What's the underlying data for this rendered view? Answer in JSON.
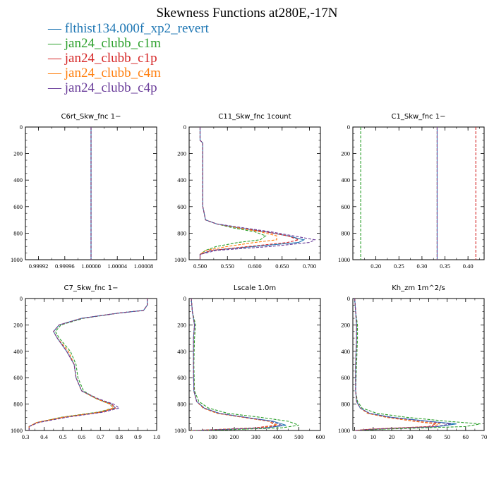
{
  "title": "Skewness Functions at280E,-17N",
  "legend": [
    {
      "label": "— flthist134.000f_xp2_revert",
      "color": "#1f77b4"
    },
    {
      "label": "— jan24_clubb_c1m",
      "color": "#2ca02c"
    },
    {
      "label": "— jan24_clubb_c1p",
      "color": "#d62728"
    },
    {
      "label": "— jan24_clubb_c4m",
      "color": "#ff7f0e"
    },
    {
      "label": "— jan24_clubb_c4p",
      "color": "#6a3d9a"
    }
  ],
  "chart_data": [
    {
      "type": "line",
      "title": "C6rt_Skw_fnc   1−",
      "xlim": [
        0.9999,
        1.0001
      ],
      "xticks": [
        "0.99992",
        "0.99996",
        "1.00000",
        "1.00004",
        "1.00008"
      ],
      "xtick_values": [
        0.99992,
        0.99996,
        1.0,
        1.00004,
        1.00008
      ],
      "ylim": [
        0,
        1000
      ],
      "yticks": [
        "0",
        "200",
        "400",
        "600",
        "800",
        "1000"
      ],
      "y_inverted": true,
      "series": [
        {
          "color": "#1f77b4",
          "y": [
            0,
            1000
          ],
          "x": [
            1.0,
            1.0
          ]
        },
        {
          "color": "#2ca02c",
          "y": [
            0,
            1000
          ],
          "x": [
            1.0,
            1.0
          ]
        },
        {
          "color": "#d62728",
          "y": [
            0,
            1000
          ],
          "x": [
            1.0,
            1.0
          ]
        },
        {
          "color": "#ff7f0e",
          "y": [
            0,
            1000
          ],
          "x": [
            1.0,
            1.0
          ]
        },
        {
          "color": "#6a3d9a",
          "y": [
            0,
            1000
          ],
          "x": [
            1.0,
            1.0
          ]
        }
      ]
    },
    {
      "type": "line",
      "title": "C11_Skw_fnc   1count",
      "xlim": [
        0.48,
        0.72
      ],
      "xticks": [
        "0.500",
        "0.550",
        "0.600",
        "0.650",
        "0.700"
      ],
      "xtick_values": [
        0.5,
        0.55,
        0.6,
        0.65,
        0.7
      ],
      "ylim": [
        0,
        1000
      ],
      "yticks": [
        "0",
        "200",
        "400",
        "600",
        "800",
        "1000"
      ],
      "y_inverted": true,
      "series": [
        {
          "color": "#1f77b4",
          "y": [
            0,
            100,
            120,
            140,
            300,
            600,
            700,
            730,
            760,
            790,
            820,
            850,
            870,
            900,
            930,
            960,
            1000
          ],
          "x": [
            0.5,
            0.5,
            0.505,
            0.505,
            0.505,
            0.505,
            0.51,
            0.53,
            0.57,
            0.62,
            0.66,
            0.69,
            0.68,
            0.6,
            0.52,
            0.5,
            0.5
          ]
        },
        {
          "color": "#2ca02c",
          "y": [
            0,
            100,
            120,
            140,
            300,
            600,
            700,
            730,
            760,
            790,
            820,
            850,
            870,
            900,
            930,
            960,
            1000
          ],
          "x": [
            0.5,
            0.5,
            0.505,
            0.505,
            0.505,
            0.505,
            0.51,
            0.53,
            0.56,
            0.6,
            0.62,
            0.61,
            0.57,
            0.53,
            0.51,
            0.5,
            0.5
          ]
        },
        {
          "color": "#d62728",
          "y": [
            0,
            100,
            120,
            140,
            300,
            600,
            700,
            730,
            760,
            790,
            820,
            850,
            870,
            900,
            930,
            960,
            1000
          ],
          "x": [
            0.5,
            0.5,
            0.505,
            0.505,
            0.505,
            0.505,
            0.51,
            0.53,
            0.57,
            0.62,
            0.66,
            0.68,
            0.66,
            0.59,
            0.52,
            0.5,
            0.5
          ]
        },
        {
          "color": "#ff7f0e",
          "y": [
            0,
            100,
            120,
            140,
            300,
            600,
            700,
            730,
            760,
            790,
            820,
            850,
            870,
            900,
            930,
            960,
            1000
          ],
          "x": [
            0.5,
            0.5,
            0.505,
            0.505,
            0.505,
            0.505,
            0.51,
            0.53,
            0.57,
            0.61,
            0.64,
            0.64,
            0.6,
            0.55,
            0.51,
            0.5,
            0.5
          ]
        },
        {
          "color": "#6a3d9a",
          "y": [
            0,
            100,
            120,
            140,
            300,
            600,
            700,
            730,
            760,
            790,
            820,
            850,
            870,
            900,
            930,
            960,
            1000
          ],
          "x": [
            0.5,
            0.5,
            0.505,
            0.505,
            0.505,
            0.505,
            0.51,
            0.53,
            0.58,
            0.63,
            0.67,
            0.71,
            0.7,
            0.63,
            0.53,
            0.5,
            0.5
          ]
        }
      ]
    },
    {
      "type": "line",
      "title": "C1_Skw_fnc   1−",
      "xlim": [
        0.15,
        0.435
      ],
      "xticks": [
        "0.20",
        "0.25",
        "0.30",
        "0.35",
        "0.40"
      ],
      "xtick_values": [
        0.2,
        0.25,
        0.3,
        0.35,
        0.4
      ],
      "ylim": [
        0,
        1000
      ],
      "yticks": [
        "0",
        "200",
        "400",
        "600",
        "800",
        "1000"
      ],
      "y_inverted": true,
      "series": [
        {
          "color": "#1f77b4",
          "y": [
            0,
            1000
          ],
          "x": [
            0.333,
            0.333
          ]
        },
        {
          "color": "#2ca02c",
          "y": [
            0,
            1000
          ],
          "x": [
            0.167,
            0.167
          ]
        },
        {
          "color": "#d62728",
          "y": [
            0,
            1000
          ],
          "x": [
            0.417,
            0.417
          ]
        },
        {
          "color": "#ff7f0e",
          "y": [
            0,
            1000
          ],
          "x": [
            0.333,
            0.333
          ]
        },
        {
          "color": "#6a3d9a",
          "y": [
            0,
            1000
          ],
          "x": [
            0.333,
            0.333
          ]
        }
      ]
    },
    {
      "type": "line",
      "title": "C7_Skw_fnc   1−",
      "xlim": [
        0.3,
        1.0
      ],
      "xticks": [
        "0.3",
        "0.4",
        "0.5",
        "0.6",
        "0.7",
        "0.8",
        "0.9",
        "1.0"
      ],
      "xtick_values": [
        0.3,
        0.4,
        0.5,
        0.6,
        0.7,
        0.8,
        0.9,
        1.0
      ],
      "ylim": [
        0,
        1000
      ],
      "yticks": [
        "0",
        "200",
        "400",
        "600",
        "800",
        "1000"
      ],
      "y_inverted": true,
      "series": [
        {
          "color": "#1f77b4",
          "y": [
            0,
            50,
            90,
            110,
            150,
            200,
            250,
            300,
            400,
            500,
            600,
            700,
            760,
            800,
            830,
            860,
            900,
            940,
            970,
            1000
          ],
          "x": [
            0.95,
            0.95,
            0.93,
            0.8,
            0.6,
            0.48,
            0.45,
            0.47,
            0.52,
            0.56,
            0.57,
            0.6,
            0.68,
            0.76,
            0.78,
            0.7,
            0.5,
            0.36,
            0.32,
            0.32
          ]
        },
        {
          "color": "#2ca02c",
          "y": [
            0,
            50,
            90,
            110,
            150,
            200,
            250,
            300,
            400,
            500,
            600,
            700,
            760,
            800,
            830,
            860,
            900,
            940,
            970,
            1000
          ],
          "x": [
            0.95,
            0.95,
            0.93,
            0.8,
            0.61,
            0.49,
            0.46,
            0.48,
            0.54,
            0.57,
            0.58,
            0.61,
            0.68,
            0.75,
            0.77,
            0.69,
            0.49,
            0.36,
            0.32,
            0.32
          ]
        },
        {
          "color": "#d62728",
          "y": [
            0,
            50,
            90,
            110,
            150,
            200,
            250,
            300,
            400,
            500,
            600,
            700,
            760,
            800,
            830,
            860,
            900,
            940,
            970,
            1000
          ],
          "x": [
            0.95,
            0.95,
            0.93,
            0.8,
            0.6,
            0.48,
            0.45,
            0.47,
            0.52,
            0.56,
            0.57,
            0.6,
            0.68,
            0.76,
            0.78,
            0.71,
            0.5,
            0.36,
            0.32,
            0.32
          ]
        },
        {
          "color": "#ff7f0e",
          "y": [
            0,
            50,
            90,
            110,
            150,
            200,
            250,
            300,
            400,
            500,
            600,
            700,
            760,
            800,
            830,
            860,
            900,
            940,
            970,
            1000
          ],
          "x": [
            0.95,
            0.95,
            0.93,
            0.8,
            0.6,
            0.48,
            0.45,
            0.47,
            0.53,
            0.56,
            0.57,
            0.6,
            0.68,
            0.75,
            0.77,
            0.7,
            0.5,
            0.36,
            0.32,
            0.32
          ]
        },
        {
          "color": "#6a3d9a",
          "y": [
            0,
            50,
            90,
            110,
            150,
            200,
            250,
            300,
            400,
            500,
            600,
            700,
            760,
            800,
            830,
            860,
            900,
            940,
            970,
            1000
          ],
          "x": [
            0.95,
            0.95,
            0.93,
            0.8,
            0.6,
            0.48,
            0.45,
            0.47,
            0.52,
            0.56,
            0.57,
            0.6,
            0.69,
            0.77,
            0.8,
            0.72,
            0.52,
            0.37,
            0.32,
            0.32
          ]
        }
      ]
    },
    {
      "type": "line",
      "title": "Lscale   1.0m",
      "xlim": [
        -10,
        600
      ],
      "xticks": [
        "0",
        "100",
        "200",
        "300",
        "400",
        "500",
        "600"
      ],
      "xtick_values": [
        0,
        100,
        200,
        300,
        400,
        500,
        600
      ],
      "ylim": [
        0,
        1000
      ],
      "yticks": [
        "0",
        "200",
        "400",
        "600",
        "800",
        "1000"
      ],
      "y_inverted": true,
      "series": [
        {
          "color": "#1f77b4",
          "y": [
            0,
            100,
            200,
            300,
            500,
            700,
            780,
            830,
            870,
            900,
            930,
            960,
            980,
            995,
            1000
          ],
          "x": [
            0,
            5,
            15,
            10,
            10,
            12,
            25,
            60,
            130,
            250,
            380,
            440,
            350,
            100,
            0
          ]
        },
        {
          "color": "#2ca02c",
          "y": [
            0,
            100,
            200,
            300,
            500,
            700,
            780,
            830,
            870,
            900,
            930,
            960,
            980,
            995,
            1000
          ],
          "x": [
            0,
            5,
            20,
            15,
            12,
            15,
            35,
            80,
            170,
            320,
            450,
            500,
            420,
            150,
            0
          ]
        },
        {
          "color": "#d62728",
          "y": [
            0,
            100,
            200,
            300,
            500,
            700,
            780,
            830,
            870,
            900,
            930,
            960,
            980,
            995,
            1000
          ],
          "x": [
            0,
            5,
            15,
            10,
            10,
            12,
            25,
            55,
            120,
            240,
            360,
            390,
            300,
            80,
            0
          ]
        },
        {
          "color": "#ff7f0e",
          "y": [
            0,
            100,
            200,
            300,
            500,
            700,
            780,
            830,
            870,
            900,
            930,
            960,
            980,
            995,
            1000
          ],
          "x": [
            0,
            5,
            15,
            10,
            10,
            12,
            25,
            55,
            120,
            240,
            360,
            400,
            320,
            90,
            0
          ]
        },
        {
          "color": "#6a3d9a",
          "y": [
            0,
            100,
            200,
            300,
            500,
            700,
            780,
            830,
            870,
            900,
            930,
            960,
            980,
            995,
            1000
          ],
          "x": [
            0,
            5,
            15,
            10,
            10,
            12,
            25,
            60,
            130,
            250,
            370,
            420,
            340,
            100,
            0
          ]
        }
      ]
    },
    {
      "type": "line",
      "title": "Kh_zm   1m^2/s",
      "xlim": [
        -1,
        70
      ],
      "xticks": [
        "0",
        "10",
        "20",
        "30",
        "40",
        "50",
        "60",
        "70"
      ],
      "xtick_values": [
        0,
        10,
        20,
        30,
        40,
        50,
        60,
        70
      ],
      "ylim": [
        0,
        1000
      ],
      "yticks": [
        "0",
        "200",
        "400",
        "600",
        "800",
        "1000"
      ],
      "y_inverted": true,
      "series": [
        {
          "color": "#1f77b4",
          "y": [
            0,
            100,
            200,
            300,
            500,
            700,
            780,
            830,
            870,
            900,
            930,
            950,
            970,
            990,
            1000
          ],
          "x": [
            0,
            0.5,
            1,
            1,
            0.5,
            0.5,
            1,
            3,
            8,
            20,
            40,
            55,
            45,
            10,
            0
          ]
        },
        {
          "color": "#2ca02c",
          "y": [
            0,
            100,
            200,
            300,
            500,
            700,
            780,
            830,
            870,
            900,
            930,
            950,
            970,
            990,
            1000
          ],
          "x": [
            0,
            0.5,
            1.5,
            1.5,
            1,
            0.5,
            1.5,
            4,
            12,
            28,
            50,
            68,
            60,
            15,
            0
          ]
        },
        {
          "color": "#d62728",
          "y": [
            0,
            100,
            200,
            300,
            500,
            700,
            780,
            830,
            870,
            900,
            930,
            950,
            970,
            990,
            1000
          ],
          "x": [
            0,
            0.5,
            1,
            1,
            0.5,
            0.5,
            1,
            3,
            7,
            17,
            32,
            44,
            40,
            8,
            0
          ]
        },
        {
          "color": "#ff7f0e",
          "y": [
            0,
            100,
            200,
            300,
            500,
            700,
            780,
            830,
            870,
            900,
            930,
            950,
            970,
            990,
            1000
          ],
          "x": [
            0,
            0.5,
            1,
            1,
            0.5,
            0.5,
            1,
            3,
            7,
            17,
            33,
            46,
            42,
            9,
            0
          ]
        },
        {
          "color": "#6a3d9a",
          "y": [
            0,
            100,
            200,
            300,
            500,
            700,
            780,
            830,
            870,
            900,
            930,
            950,
            970,
            990,
            1000
          ],
          "x": [
            0,
            0.5,
            1,
            1,
            0.5,
            0.5,
            1,
            3,
            8,
            19,
            38,
            52,
            44,
            10,
            0
          ]
        }
      ]
    }
  ]
}
